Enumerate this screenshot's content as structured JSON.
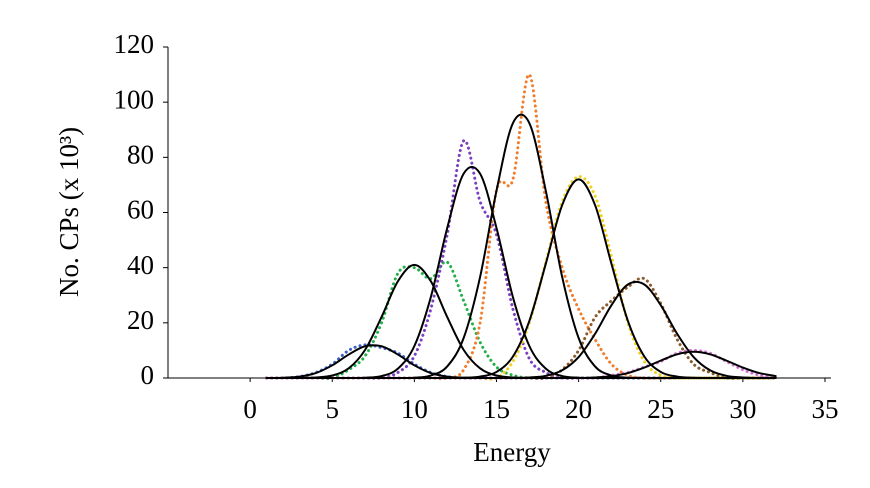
{
  "chart_data": {
    "type": "line",
    "xlabel": "Energy",
    "ylabel": "No. CPs (x 10³)",
    "xlim": [
      -5,
      35
    ],
    "xticks": [
      0,
      5,
      10,
      15,
      20,
      25,
      30,
      35
    ],
    "ylim": [
      0,
      120
    ],
    "yticks": [
      0,
      20,
      40,
      60,
      80,
      100,
      120
    ],
    "x": [
      1,
      2,
      3,
      4,
      5,
      6,
      7,
      8,
      9,
      10,
      11,
      12,
      13,
      14,
      15,
      16,
      17,
      18,
      19,
      20,
      21,
      22,
      23,
      24,
      25,
      26,
      27,
      28,
      29,
      30,
      31,
      32
    ],
    "series": [
      {
        "color": "#3a5fcd",
        "style": "dotted",
        "values": [
          0,
          0,
          0.5,
          2,
          5,
          10,
          12,
          11,
          9,
          5,
          2,
          0.5,
          0,
          0,
          0,
          0,
          0,
          0,
          0,
          0,
          0,
          0,
          0,
          0,
          0,
          0,
          0,
          0,
          0,
          0,
          0,
          0
        ]
      },
      {
        "color": "#22b04a",
        "style": "dotted",
        "values": [
          0,
          0,
          0,
          0,
          0,
          3,
          8,
          20,
          38,
          40,
          36,
          42,
          28,
          13,
          4,
          1,
          0,
          0,
          0,
          0,
          0,
          0,
          0,
          0,
          0,
          0,
          0,
          0,
          0,
          0,
          0,
          0
        ]
      },
      {
        "color": "#7b3fbf",
        "style": "dotted",
        "values": [
          0,
          0,
          0,
          0,
          0,
          0,
          0,
          0,
          2,
          8,
          25,
          52,
          86,
          64,
          52,
          25,
          7,
          2,
          0,
          0,
          0,
          0,
          0,
          0,
          0,
          0,
          0,
          0,
          0,
          0,
          0,
          0
        ]
      },
      {
        "color": "#f07d2c",
        "style": "dotted",
        "values": [
          0,
          0,
          0,
          0,
          0,
          0,
          0,
          0,
          0,
          0,
          0,
          0,
          3,
          20,
          68,
          72,
          110,
          64,
          40,
          25,
          14,
          5,
          1,
          0,
          0,
          0,
          0,
          0,
          0,
          0,
          0,
          0
        ]
      },
      {
        "color": "#f0d020",
        "style": "dotted",
        "values": [
          0,
          0,
          0,
          0,
          0,
          0,
          0,
          0,
          0,
          0,
          0,
          0,
          0,
          0,
          0,
          6,
          20,
          42,
          64,
          73,
          66,
          44,
          20,
          6,
          1,
          0,
          0,
          0,
          0,
          0,
          0,
          0
        ]
      },
      {
        "color": "#8b5a2b",
        "style": "dotted",
        "values": [
          0,
          0,
          0,
          0,
          0,
          0,
          0,
          0,
          0,
          0,
          0,
          0,
          0,
          0,
          0,
          0,
          0,
          0,
          3,
          10,
          22,
          28,
          33,
          36,
          27,
          14,
          5,
          2,
          0,
          0,
          0,
          0
        ]
      },
      {
        "color": "#d070d0",
        "style": "dotted",
        "values": [
          0,
          0,
          0,
          0,
          0,
          0,
          0,
          0,
          0,
          0,
          0,
          0,
          0,
          0,
          0,
          0,
          0,
          0,
          0,
          0,
          0,
          1,
          2,
          4,
          6,
          9,
          10,
          9,
          6,
          3,
          1,
          0
        ]
      },
      {
        "color": "#000000",
        "style": "solid",
        "values": [
          0,
          0.1,
          0.5,
          1.8,
          4.6,
          8.5,
          11.5,
          11.5,
          8.5,
          4.6,
          1.8,
          0.5,
          0.1,
          0,
          0,
          0,
          0,
          0,
          0,
          0,
          0,
          0,
          0,
          0,
          0,
          0,
          0,
          0,
          0,
          0,
          0,
          0
        ]
      },
      {
        "color": "#000000",
        "style": "solid",
        "values": [
          0,
          0,
          0,
          0.2,
          0.9,
          3.5,
          10.2,
          22.1,
          35.1,
          41,
          35.1,
          22.1,
          10.2,
          3.5,
          0.9,
          0.2,
          0,
          0,
          0,
          0,
          0,
          0,
          0,
          0,
          0,
          0,
          0,
          0,
          0,
          0,
          0,
          0
        ]
      },
      {
        "color": "#000000",
        "style": "solid",
        "values": [
          0,
          0,
          0,
          0,
          0,
          0,
          0.1,
          0.7,
          3.4,
          11.6,
          29.3,
          54.4,
          74.1,
          74.1,
          54.4,
          29.3,
          11.6,
          3.4,
          0.7,
          0.1,
          0,
          0,
          0,
          0,
          0,
          0,
          0,
          0,
          0,
          0,
          0,
          0
        ]
      },
      {
        "color": "#000000",
        "style": "solid",
        "values": [
          0,
          0,
          0,
          0,
          0,
          0,
          0,
          0,
          0,
          0.1,
          0.9,
          4.2,
          14.5,
          36.6,
          67.9,
          92.4,
          92.4,
          67.9,
          36.6,
          14.5,
          4.2,
          0.9,
          0.1,
          0,
          0,
          0,
          0,
          0,
          0,
          0,
          0,
          0
        ]
      },
      {
        "color": "#000000",
        "style": "solid",
        "values": [
          0,
          0,
          0,
          0,
          0,
          0,
          0,
          0,
          0,
          0,
          0,
          0,
          0.1,
          0.5,
          2.2,
          7.8,
          20.7,
          41.4,
          62.7,
          72,
          62.7,
          41.4,
          20.7,
          7.8,
          2.2,
          0.5,
          0.1,
          0,
          0,
          0,
          0,
          0
        ]
      },
      {
        "color": "#000000",
        "style": "solid",
        "values": [
          0,
          0,
          0,
          0,
          0,
          0,
          0,
          0,
          0,
          0,
          0,
          0,
          0,
          0,
          0,
          0,
          0.2,
          0.8,
          2.8,
          7.6,
          16,
          26.4,
          33.9,
          33.9,
          26.4,
          16,
          7.6,
          2.8,
          0.8,
          0.2,
          0,
          0
        ]
      },
      {
        "color": "#000000",
        "style": "solid",
        "values": [
          0,
          0,
          0,
          0,
          0,
          0,
          0,
          0,
          0,
          0,
          0,
          0,
          0,
          0,
          0,
          0,
          0,
          0,
          0,
          0,
          0.2,
          0.7,
          1.8,
          3.8,
          6.3,
          8.6,
          9.5,
          8.6,
          6.3,
          3.8,
          1.8,
          0.7
        ]
      }
    ]
  }
}
